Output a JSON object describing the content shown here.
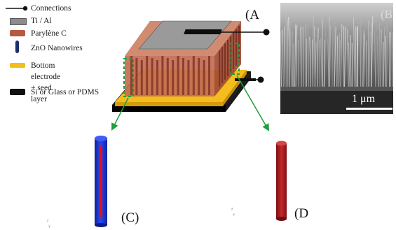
{
  "legend": {
    "items": [
      {
        "label": "Connections",
        "swatch": "connection",
        "color": "#111111"
      },
      {
        "label": "Ti / Al",
        "swatch": "ti-al",
        "color": "#8c8c8c"
      },
      {
        "label": "Parylène C",
        "swatch": "parylene",
        "color": "#b55a42"
      },
      {
        "label": "ZnO Nanowires",
        "swatch": "zno",
        "color": "#1c2f6e"
      },
      {
        "label": "Bottom electrode\n+ seed layer",
        "swatch": "electrode",
        "color": "#f2bd1d"
      },
      {
        "label": "Si or Glass or PDMS",
        "swatch": "substrate",
        "color": "#111111"
      }
    ]
  },
  "panels": {
    "a_label": "(A",
    "b_label": "(B",
    "c_label": "(C)",
    "d_label": "(D"
  },
  "sem": {
    "scale_label": "1 μm"
  },
  "colors": {
    "parylene": "#b55a42",
    "parylene_dark": "#8e3e2c",
    "top_electrode": "#8c8c8c",
    "bottom_electrode": "#f2bd1d",
    "substrate": "#111111",
    "nanowire_blue": "#1a35d6",
    "nanowire_core": "#e0101a",
    "encapsulated_wire": "#b21e1e",
    "callout": "#1f9e3a"
  }
}
